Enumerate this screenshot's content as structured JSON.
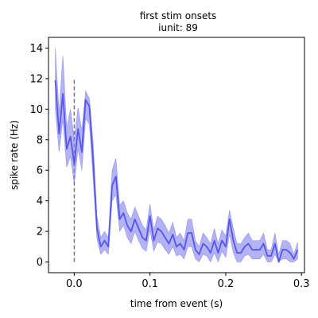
{
  "chart_data": {
    "type": "line",
    "title": "first stim onsets",
    "subtitle": "iunit: 89",
    "xlabel": "time from event (s)",
    "ylabel": "spike rate (Hz)",
    "xlim": [
      -0.034,
      0.304
    ],
    "ylim": [
      -0.7,
      14.7
    ],
    "xticks": [
      0.0,
      0.1,
      0.2,
      0.3
    ],
    "xtick_labels": [
      "0.0",
      "0.1",
      "0.2",
      "0.3"
    ],
    "yticks": [
      0,
      2,
      4,
      6,
      8,
      10,
      12,
      14
    ],
    "ytick_labels": [
      "0",
      "2",
      "4",
      "6",
      "8",
      "10",
      "12",
      "14"
    ],
    "grid": false,
    "line_color": "#5555ee",
    "band_color": "#8888f0",
    "event_marker": {
      "x": 0.0,
      "y_range": [
        0,
        12
      ],
      "color": "#777777",
      "style": "dashed"
    },
    "series": [
      {
        "x": [
          -0.025,
          -0.02,
          -0.015,
          -0.01,
          -0.005,
          0.0,
          0.005,
          0.01,
          0.015,
          0.02,
          0.025,
          0.03,
          0.035,
          0.04,
          0.045,
          0.05,
          0.055,
          0.06,
          0.065,
          0.07,
          0.075,
          0.08,
          0.085,
          0.09,
          0.095,
          0.1,
          0.105,
          0.11,
          0.115,
          0.12,
          0.125,
          0.13,
          0.135,
          0.14,
          0.145,
          0.15,
          0.155,
          0.16,
          0.165,
          0.17,
          0.175,
          0.18,
          0.185,
          0.19,
          0.195,
          0.2,
          0.205,
          0.21,
          0.215,
          0.22,
          0.225,
          0.23,
          0.235,
          0.24,
          0.245,
          0.25,
          0.255,
          0.26,
          0.265,
          0.27,
          0.275,
          0.28,
          0.285,
          0.29,
          0.295
        ],
        "values": [
          11.9,
          8.4,
          11.0,
          7.4,
          8.2,
          6.4,
          8.7,
          7.2,
          10.6,
          10.2,
          6.6,
          2.2,
          1.0,
          1.4,
          1.0,
          5.0,
          5.6,
          2.8,
          3.2,
          2.4,
          2.0,
          2.8,
          2.2,
          1.6,
          1.4,
          3.0,
          1.4,
          2.2,
          2.0,
          1.6,
          1.2,
          1.8,
          1.0,
          1.2,
          0.8,
          1.9,
          1.9,
          0.8,
          0.5,
          1.2,
          1.0,
          0.6,
          1.4,
          0.6,
          1.4,
          1.0,
          2.8,
          1.4,
          0.6,
          0.6,
          1.0,
          1.2,
          0.8,
          0.8,
          0.8,
          1.2,
          0.4,
          0.4,
          1.2,
          0.0,
          0.8,
          0.8,
          0.6,
          0.2,
          0.8
        ],
        "lower": [
          10.0,
          7.2,
          9.3,
          6.2,
          6.9,
          5.1,
          7.4,
          6.0,
          9.4,
          9.0,
          5.4,
          1.5,
          0.5,
          0.8,
          0.5,
          4.0,
          4.4,
          2.0,
          2.4,
          1.6,
          1.2,
          2.0,
          1.4,
          0.9,
          0.7,
          2.1,
          0.7,
          1.3,
          1.2,
          0.8,
          0.5,
          1.0,
          0.4,
          0.5,
          0.2,
          1.0,
          1.0,
          0.2,
          0.0,
          0.5,
          0.4,
          0.0,
          0.6,
          0.0,
          0.7,
          0.3,
          1.8,
          0.6,
          0.0,
          0.0,
          0.4,
          0.5,
          0.2,
          0.2,
          0.2,
          0.5,
          0.0,
          0.0,
          0.5,
          0.0,
          0.2,
          0.2,
          0.0,
          0.0,
          0.2
        ],
        "upper": [
          14.0,
          9.8,
          13.5,
          8.8,
          10.0,
          8.0,
          10.1,
          8.6,
          11.2,
          10.7,
          7.8,
          3.0,
          1.6,
          2.0,
          1.6,
          6.0,
          6.8,
          3.7,
          4.0,
          3.2,
          2.8,
          3.6,
          3.0,
          2.4,
          2.1,
          3.8,
          2.1,
          3.0,
          2.8,
          2.4,
          1.9,
          2.6,
          1.6,
          1.9,
          1.4,
          2.8,
          2.8,
          1.4,
          1.0,
          1.9,
          1.6,
          1.2,
          2.2,
          1.2,
          2.1,
          1.7,
          3.4,
          2.2,
          1.2,
          1.2,
          1.6,
          1.9,
          1.4,
          1.4,
          1.4,
          1.9,
          0.8,
          0.8,
          1.9,
          0.5,
          1.4,
          1.4,
          1.2,
          0.5,
          1.3
        ]
      }
    ]
  }
}
